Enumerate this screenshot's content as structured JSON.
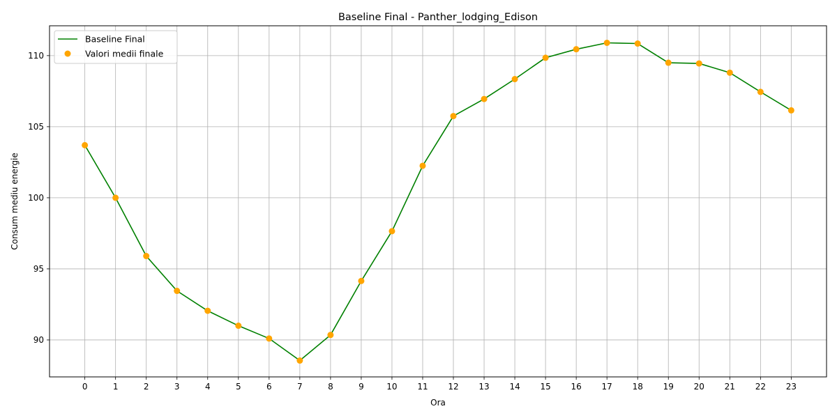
{
  "chart_data": {
    "type": "line",
    "title": "Baseline Final - Panther_lodging_Edison",
    "xlabel": "Ora",
    "ylabel": "Consum mediu energie",
    "x": [
      0,
      1,
      2,
      3,
      4,
      5,
      6,
      7,
      8,
      9,
      10,
      11,
      12,
      13,
      14,
      15,
      16,
      17,
      18,
      19,
      20,
      21,
      22,
      23
    ],
    "xlim": [
      -1.15,
      24.15
    ],
    "ylim": [
      87.4,
      112.1
    ],
    "yticks": [
      90,
      95,
      100,
      105,
      110
    ],
    "grid": true,
    "legend_position": "top-left",
    "series": [
      {
        "name": "Baseline Final",
        "kind": "line",
        "color": "#008000",
        "values": [
          103.7,
          100.0,
          95.9,
          93.45,
          92.05,
          91.0,
          90.1,
          88.55,
          90.35,
          94.15,
          97.65,
          102.25,
          105.75,
          106.95,
          108.35,
          109.85,
          110.45,
          110.9,
          110.85,
          109.5,
          109.45,
          108.8,
          107.45,
          106.15
        ]
      },
      {
        "name": "Valori medii finale",
        "kind": "scatter",
        "color": "#ffa500",
        "values": [
          103.7,
          100.0,
          95.9,
          93.45,
          92.05,
          91.0,
          90.1,
          88.55,
          90.35,
          94.15,
          97.65,
          102.25,
          105.75,
          106.95,
          108.35,
          109.85,
          110.45,
          110.9,
          110.85,
          109.5,
          109.45,
          108.8,
          107.45,
          106.15
        ]
      }
    ]
  }
}
